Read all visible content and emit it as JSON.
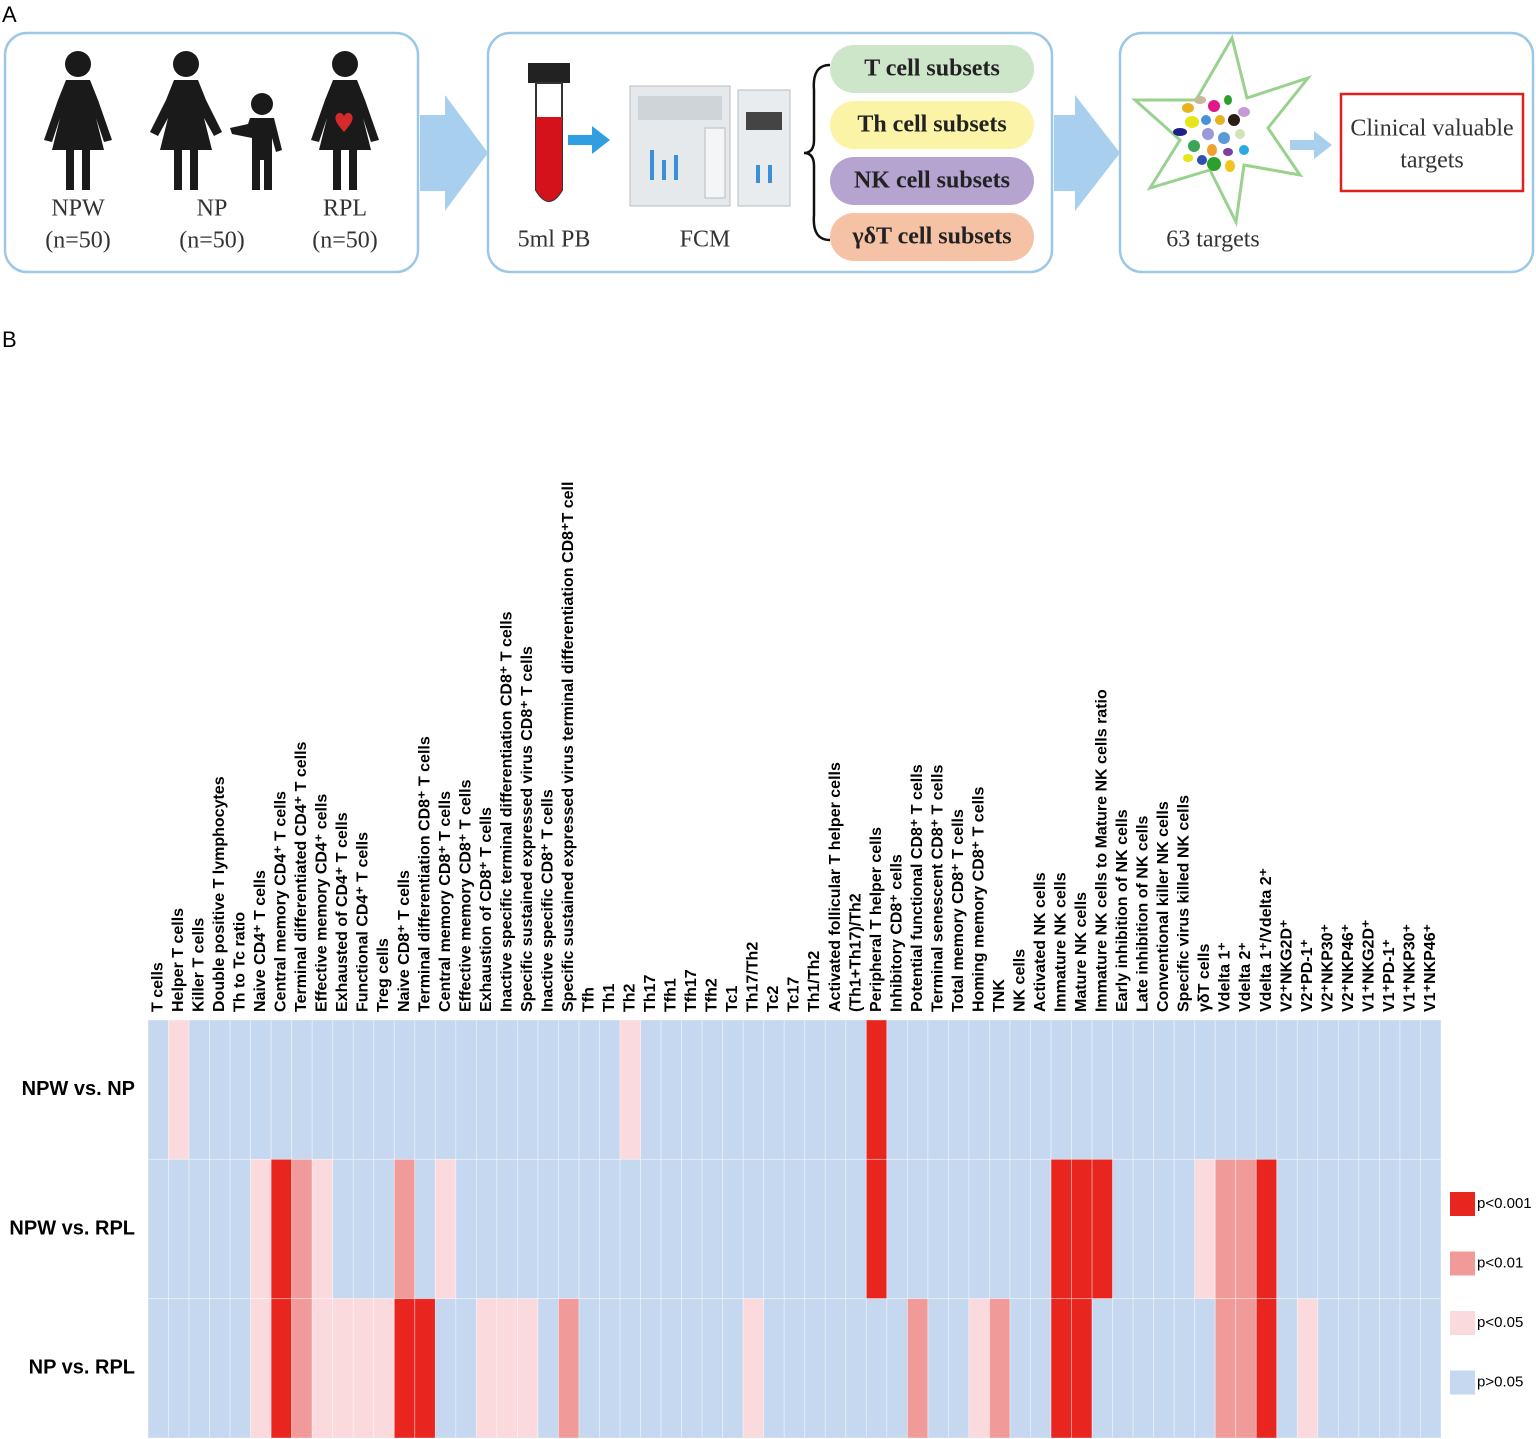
{
  "panel_a": {
    "label": "A",
    "groups": [
      {
        "name": "NPW",
        "n": "(n=50)"
      },
      {
        "name": "NP",
        "n": "(n=50)"
      },
      {
        "name": "RPL",
        "n": "(n=50)"
      }
    ],
    "sample": "5ml PB",
    "instrument": "FCM",
    "subsets": [
      {
        "name": "T cell subsets",
        "color": "#cde6c9"
      },
      {
        "name": "Th cell subsets",
        "color": "#fbf4a6"
      },
      {
        "name": "NK cell subsets",
        "color": "#b5a3d0"
      },
      {
        "name": "γδT cell subsets",
        "color": "#f6c2a5"
      }
    ],
    "targets": "63 targets",
    "result": [
      "Clinical valuable",
      "targets"
    ]
  },
  "panel_b": {
    "label": "B",
    "columns": [
      "T cells",
      "Helper T cells",
      "Killer T cells",
      "Double positive T lymphocytes",
      "Th to Tc ratio",
      "Naive CD4⁺ T cells",
      "Central memory CD4⁺ T cells",
      "Terminal differentiated CD4⁺ T cells",
      "Effective memory CD4⁺ cells",
      "Exhausted of CD4⁺ T cells",
      "Functional CD4⁺ T cells",
      "Treg cells",
      "Naive CD8⁺ T cells",
      "Terminal differentiation CD8⁺ T cells",
      "Central memory CD8⁺ T cells",
      "Effective memory CD8⁺ T cells",
      "Exhaustion of CD8⁺ T cells",
      "Inactive specific terminal differentiation CD8⁺ T cells",
      "Specific sustained expressed virus CD8⁺ T cells",
      "Inactive specific CD8⁺ T cells",
      "Specific sustained expressed virus terminal differentiation CD8⁺T cell",
      "Tfh",
      "Th1",
      "Th2",
      "Th17",
      "Tfh1",
      "Tfh17",
      "Tfh2",
      "Tc1",
      "Th17/Th2",
      "Tc2",
      "Tc17",
      "Th1/Th2",
      "Activated follicular T helper cells",
      "(Th1+Th17)/Th2",
      "Peripheral T helper cells",
      "Inhibitory CD8⁺ cells",
      "Potential functional CD8⁺ T cells",
      "Terminal senescent CD8⁺ T cells",
      "Total memory CD8⁺ T cells",
      "Homing memory CD8⁺ T cells",
      "TNK",
      "NK cells",
      "Activated NK cells",
      "Immature NK cells",
      "Mature NK cells",
      "Immature NK cells to Mature NK cells ratio",
      "Early inhibition of NK cells",
      "Late inhibition of NK cells",
      "Conventional killer NK cells",
      "Specific virus killed NK cells",
      "γδT cells",
      "Vdelta 1⁺",
      "Vdelta 2⁺",
      "Vdelta 1⁺/Vdelta 2⁺",
      "V2⁺NKG2D⁺",
      "V2⁺PD-1⁺",
      "V2⁺NKP30⁺",
      "V2⁺NKP46⁺",
      "V1⁺NKG2D⁺",
      "V1⁺PD-1⁺",
      "V1⁺NKP30⁺",
      "V1⁺NKP46⁺"
    ],
    "rows": [
      {
        "name": "NPW vs. NP",
        "values": [
          "p>0.05",
          "p<0.05",
          "p>0.05",
          "p>0.05",
          "p>0.05",
          "p>0.05",
          "p>0.05",
          "p>0.05",
          "p>0.05",
          "p>0.05",
          "p>0.05",
          "p>0.05",
          "p>0.05",
          "p>0.05",
          "p>0.05",
          "p>0.05",
          "p>0.05",
          "p>0.05",
          "p>0.05",
          "p>0.05",
          "p>0.05",
          "p>0.05",
          "p>0.05",
          "p<0.05",
          "p>0.05",
          "p>0.05",
          "p>0.05",
          "p>0.05",
          "p>0.05",
          "p>0.05",
          "p>0.05",
          "p>0.05",
          "p>0.05",
          "p>0.05",
          "p>0.05",
          "p<0.001",
          "p>0.05",
          "p>0.05",
          "p>0.05",
          "p>0.05",
          "p>0.05",
          "p>0.05",
          "p>0.05",
          "p>0.05",
          "p>0.05",
          "p>0.05",
          "p>0.05",
          "p>0.05",
          "p>0.05",
          "p>0.05",
          "p>0.05",
          "p>0.05",
          "p>0.05",
          "p>0.05",
          "p>0.05",
          "p>0.05",
          "p>0.05",
          "p>0.05",
          "p>0.05",
          "p>0.05",
          "p>0.05",
          "p>0.05",
          "p>0.05"
        ]
      },
      {
        "name": "NPW vs. RPL",
        "values": [
          "p>0.05",
          "p>0.05",
          "p>0.05",
          "p>0.05",
          "p>0.05",
          "p<0.05",
          "p<0.001",
          "p<0.01",
          "p<0.05",
          "p>0.05",
          "p>0.05",
          "p>0.05",
          "p<0.01",
          "p>0.05",
          "p<0.05",
          "p>0.05",
          "p>0.05",
          "p>0.05",
          "p>0.05",
          "p>0.05",
          "p>0.05",
          "p>0.05",
          "p>0.05",
          "p>0.05",
          "p>0.05",
          "p>0.05",
          "p>0.05",
          "p>0.05",
          "p>0.05",
          "p>0.05",
          "p>0.05",
          "p>0.05",
          "p>0.05",
          "p>0.05",
          "p>0.05",
          "p<0.001",
          "p>0.05",
          "p>0.05",
          "p>0.05",
          "p>0.05",
          "p>0.05",
          "p>0.05",
          "p>0.05",
          "p>0.05",
          "p<0.001",
          "p<0.001",
          "p<0.001",
          "p>0.05",
          "p>0.05",
          "p>0.05",
          "p>0.05",
          "p<0.05",
          "p<0.01",
          "p<0.01",
          "p<0.001",
          "p>0.05",
          "p>0.05",
          "p>0.05",
          "p>0.05",
          "p>0.05",
          "p>0.05",
          "p>0.05",
          "p>0.05"
        ]
      },
      {
        "name": "NP vs. RPL",
        "values": [
          "p>0.05",
          "p>0.05",
          "p>0.05",
          "p>0.05",
          "p>0.05",
          "p<0.05",
          "p<0.001",
          "p<0.01",
          "p<0.05",
          "p<0.05",
          "p<0.05",
          "p<0.05",
          "p<0.001",
          "p<0.001",
          "p>0.05",
          "p>0.05",
          "p<0.05",
          "p<0.05",
          "p<0.05",
          "p>0.05",
          "p<0.01",
          "p>0.05",
          "p>0.05",
          "p>0.05",
          "p>0.05",
          "p>0.05",
          "p>0.05",
          "p>0.05",
          "p>0.05",
          "p<0.05",
          "p>0.05",
          "p>0.05",
          "p>0.05",
          "p>0.05",
          "p>0.05",
          "p>0.05",
          "p>0.05",
          "p<0.01",
          "p>0.05",
          "p>0.05",
          "p<0.05",
          "p<0.01",
          "p>0.05",
          "p>0.05",
          "p<0.001",
          "p<0.001",
          "p>0.05",
          "p>0.05",
          "p>0.05",
          "p>0.05",
          "p>0.05",
          "p>0.05",
          "p<0.01",
          "p<0.01",
          "p<0.001",
          "p>0.05",
          "p<0.05",
          "p>0.05",
          "p>0.05",
          "p>0.05",
          "p>0.05",
          "p>0.05",
          "p>0.05"
        ]
      }
    ],
    "legend": [
      {
        "label": "p<0.001",
        "color": "#e8251f"
      },
      {
        "label": "p<0.01",
        "color": "#f09b9a"
      },
      {
        "label": "p<0.05",
        "color": "#fadadd"
      },
      {
        "label": "p>0.05",
        "color": "#c6d8ef"
      }
    ]
  }
}
